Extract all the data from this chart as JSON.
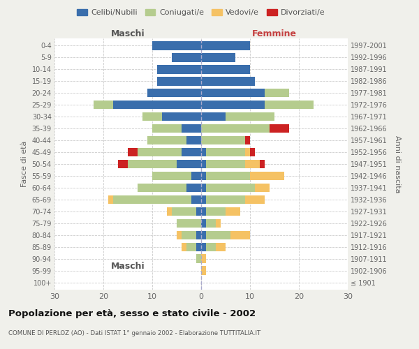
{
  "age_groups": [
    "100+",
    "95-99",
    "90-94",
    "85-89",
    "80-84",
    "75-79",
    "70-74",
    "65-69",
    "60-64",
    "55-59",
    "50-54",
    "45-49",
    "40-44",
    "35-39",
    "30-34",
    "25-29",
    "20-24",
    "15-19",
    "10-14",
    "5-9",
    "0-4"
  ],
  "birth_years": [
    "≤ 1901",
    "1902-1906",
    "1907-1911",
    "1912-1916",
    "1917-1921",
    "1922-1926",
    "1927-1931",
    "1932-1936",
    "1937-1941",
    "1942-1946",
    "1947-1951",
    "1952-1956",
    "1957-1961",
    "1962-1966",
    "1967-1971",
    "1972-1976",
    "1977-1981",
    "1982-1986",
    "1987-1991",
    "1992-1996",
    "1997-2001"
  ],
  "male": {
    "celibi": [
      0,
      0,
      0,
      1,
      1,
      0,
      1,
      2,
      3,
      2,
      5,
      4,
      3,
      4,
      8,
      18,
      11,
      9,
      9,
      6,
      10
    ],
    "coniugati": [
      0,
      0,
      1,
      2,
      3,
      5,
      5,
      16,
      10,
      8,
      10,
      9,
      8,
      6,
      4,
      4,
      0,
      0,
      0,
      0,
      0
    ],
    "vedovi": [
      0,
      0,
      0,
      1,
      1,
      0,
      1,
      1,
      0,
      0,
      0,
      0,
      0,
      0,
      0,
      0,
      0,
      0,
      0,
      0,
      0
    ],
    "divorziati": [
      0,
      0,
      0,
      0,
      0,
      0,
      0,
      0,
      0,
      0,
      2,
      2,
      0,
      0,
      0,
      0,
      0,
      0,
      0,
      0,
      0
    ]
  },
  "female": {
    "nubili": [
      0,
      0,
      0,
      1,
      1,
      1,
      1,
      1,
      1,
      1,
      1,
      1,
      0,
      0,
      5,
      13,
      13,
      11,
      10,
      7,
      10
    ],
    "coniugate": [
      0,
      0,
      0,
      2,
      5,
      2,
      4,
      8,
      10,
      9,
      8,
      8,
      9,
      14,
      10,
      10,
      5,
      0,
      0,
      0,
      0
    ],
    "vedove": [
      0,
      1,
      1,
      2,
      4,
      1,
      3,
      4,
      3,
      7,
      3,
      1,
      0,
      0,
      0,
      0,
      0,
      0,
      0,
      0,
      0
    ],
    "divorziate": [
      0,
      0,
      0,
      0,
      0,
      0,
      0,
      0,
      0,
      0,
      1,
      1,
      1,
      4,
      0,
      0,
      0,
      0,
      0,
      0,
      0
    ]
  },
  "colors": {
    "celibi": "#3a6eac",
    "coniugati": "#b5cc8e",
    "vedovi": "#f5c264",
    "divorziati": "#cc2222"
  },
  "xlim": 30,
  "title": "Popolazione per età, sesso e stato civile - 2002",
  "subtitle": "COMUNE DI PERLOZ (AO) - Dati ISTAT 1° gennaio 2002 - Elaborazione TUTTITALIA.IT",
  "ylabel_left": "Fasce di età",
  "ylabel_right": "Anni di nascita",
  "xlabel_left": "Maschi",
  "xlabel_right": "Femmine",
  "bg_color": "#f0f0eb",
  "plot_bg": "#ffffff"
}
